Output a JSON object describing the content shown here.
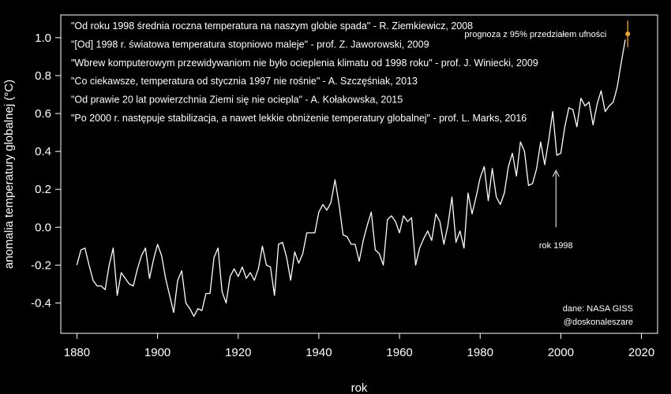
{
  "chart_data": {
    "type": "line",
    "title": "",
    "xlabel": "rok",
    "ylabel": "anomalia temperatury globalnej (°C)",
    "xlim": [
      1876,
      2024
    ],
    "ylim": [
      -0.56,
      1.12
    ],
    "xticks": [
      "1880",
      "1900",
      "1920",
      "1940",
      "1960",
      "1980",
      "2000",
      "2020"
    ],
    "xtick_values": [
      1880,
      1900,
      1920,
      1940,
      1960,
      1980,
      2000,
      2020
    ],
    "yticks": [
      "-0.4",
      "-0.2",
      "0.0",
      "0.2",
      "0.4",
      "0.6",
      "0.8",
      "1.0"
    ],
    "ytick_values": [
      -0.4,
      -0.2,
      0.0,
      0.2,
      0.4,
      0.6,
      0.8,
      1.0
    ],
    "grid": false,
    "line_color": "#ffffff",
    "series": [
      {
        "x": [
          1880,
          1881,
          1882,
          1883,
          1884,
          1885,
          1886,
          1887,
          1888,
          1889,
          1890,
          1891,
          1892,
          1893,
          1894,
          1895,
          1896,
          1897,
          1898,
          1899,
          1900,
          1901,
          1902,
          1903,
          1904,
          1905,
          1906,
          1907,
          1908,
          1909,
          1910,
          1911,
          1912,
          1913,
          1914,
          1915,
          1916,
          1917,
          1918,
          1919,
          1920,
          1921,
          1922,
          1923,
          1924,
          1925,
          1926,
          1927,
          1928,
          1929,
          1930,
          1931,
          1932,
          1933,
          1934,
          1935,
          1936,
          1937,
          1938,
          1939,
          1940,
          1941,
          1942,
          1943,
          1944,
          1945,
          1946,
          1947,
          1948,
          1949,
          1950,
          1951,
          1952,
          1953,
          1954,
          1955,
          1956,
          1957,
          1958,
          1959,
          1960,
          1961,
          1962,
          1963,
          1964,
          1965,
          1966,
          1967,
          1968,
          1969,
          1970,
          1971,
          1972,
          1973,
          1974,
          1975,
          1976,
          1977,
          1978,
          1979,
          1980,
          1981,
          1982,
          1983,
          1984,
          1985,
          1986,
          1987,
          1988,
          1989,
          1990,
          1991,
          1992,
          1993,
          1994,
          1995,
          1996,
          1997,
          1998,
          1999,
          2000,
          2001,
          2002,
          2003,
          2004,
          2005,
          2006,
          2007,
          2008,
          2009,
          2010,
          2011,
          2012,
          2013,
          2014,
          2015,
          2016
        ],
        "values": [
          -0.2,
          -0.12,
          -0.11,
          -0.2,
          -0.28,
          -0.31,
          -0.31,
          -0.33,
          -0.2,
          -0.11,
          -0.36,
          -0.24,
          -0.27,
          -0.3,
          -0.31,
          -0.22,
          -0.15,
          -0.11,
          -0.27,
          -0.17,
          -0.09,
          -0.15,
          -0.27,
          -0.36,
          -0.45,
          -0.28,
          -0.23,
          -0.4,
          -0.43,
          -0.47,
          -0.43,
          -0.44,
          -0.35,
          -0.35,
          -0.16,
          -0.11,
          -0.34,
          -0.4,
          -0.26,
          -0.22,
          -0.26,
          -0.21,
          -0.27,
          -0.24,
          -0.28,
          -0.22,
          -0.1,
          -0.2,
          -0.21,
          -0.36,
          -0.09,
          -0.08,
          -0.16,
          -0.28,
          -0.13,
          -0.19,
          -0.14,
          -0.03,
          -0.03,
          -0.03,
          0.08,
          0.12,
          0.09,
          0.13,
          0.25,
          0.12,
          -0.04,
          -0.05,
          -0.09,
          -0.09,
          -0.18,
          -0.07,
          0.01,
          0.08,
          -0.12,
          -0.14,
          -0.2,
          0.04,
          0.06,
          0.03,
          -0.03,
          0.06,
          0.03,
          0.05,
          -0.2,
          -0.11,
          -0.06,
          -0.02,
          -0.07,
          0.07,
          0.03,
          -0.09,
          0.01,
          0.16,
          -0.08,
          -0.02,
          -0.11,
          0.18,
          0.07,
          0.16,
          0.26,
          0.32,
          0.14,
          0.31,
          0.16,
          0.12,
          0.18,
          0.32,
          0.39,
          0.27,
          0.45,
          0.4,
          0.22,
          0.23,
          0.31,
          0.45,
          0.33,
          0.46,
          0.61,
          0.38,
          0.39,
          0.53,
          0.63,
          0.62,
          0.53,
          0.68,
          0.64,
          0.66,
          0.54,
          0.65,
          0.72,
          0.61,
          0.64,
          0.66,
          0.74,
          0.87,
          0.99
        ]
      }
    ],
    "forecast": {
      "label": "prognoza z 95% przedziałem ufności",
      "color": "#f5a623",
      "x": 2016.6,
      "value": 1.02,
      "lower": 0.95,
      "upper": 1.09
    },
    "annotations": {
      "quotes": [
        "\"Od roku 1998 średnia roczna temperatura na naszym globie spada\" - R. Ziemkiewicz, 2008",
        "\"[Od] 1998 r. światowa temperatura stopniowo maleje\" - prof. Z. Jaworowski, 2009",
        "\"Wbrew komputerowym przewidywaniom nie było ocieplenia klimatu od 1998 roku\" - prof. J. Winiecki, 2009",
        "\"Co ciekawsze, temperatura od stycznia 1997 nie rośnie\" - A. Szczęśniak, 2013",
        "\"Od prawie 20 lat powierzchnia Ziemi się nie ociepla\" - A. Kołakowska, 2015",
        "\"Po 2000 r. następuje stabilizacja, a nawet lekkie obniżenie temperatury  globalnej\" - prof. L. Marks, 2016"
      ],
      "year_marker_label": "rok 1998",
      "year_marker_x": 1998.8,
      "credits": [
        "dane: NASA GISS",
        "@doskonaleszare"
      ]
    }
  }
}
